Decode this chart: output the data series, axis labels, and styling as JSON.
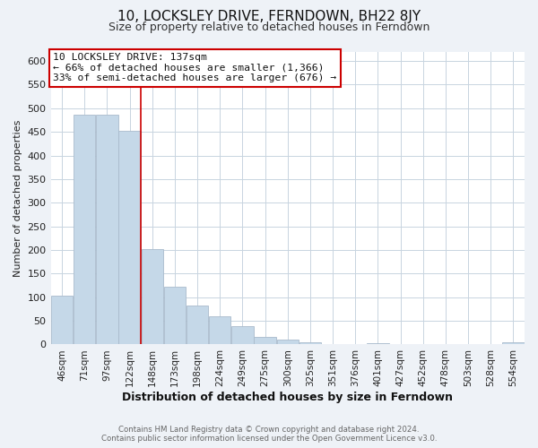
{
  "title": "10, LOCKSLEY DRIVE, FERNDOWN, BH22 8JY",
  "subtitle": "Size of property relative to detached houses in Ferndown",
  "xlabel": "Distribution of detached houses by size in Ferndown",
  "ylabel": "Number of detached properties",
  "bar_labels": [
    "46sqm",
    "71sqm",
    "97sqm",
    "122sqm",
    "148sqm",
    "173sqm",
    "198sqm",
    "224sqm",
    "249sqm",
    "275sqm",
    "300sqm",
    "325sqm",
    "351sqm",
    "376sqm",
    "401sqm",
    "427sqm",
    "452sqm",
    "478sqm",
    "503sqm",
    "528sqm",
    "554sqm"
  ],
  "bar_values": [
    103,
    487,
    487,
    452,
    201,
    122,
    82,
    59,
    38,
    16,
    10,
    5,
    0,
    0,
    3,
    0,
    0,
    0,
    0,
    0,
    5
  ],
  "bar_color": "#c5d8e8",
  "bar_edge_color": "#aabbcc",
  "annotation_box_color": "#ffffff",
  "annotation_box_edge": "#cc0000",
  "annotation_line1": "10 LOCKSLEY DRIVE: 137sqm",
  "annotation_line2": "← 66% of detached houses are smaller (1,366)",
  "annotation_line3": "33% of semi-detached houses are larger (676) →",
  "vline_color": "#cc0000",
  "vline_x": 3.5,
  "ylim": [
    0,
    620
  ],
  "yticks": [
    0,
    50,
    100,
    150,
    200,
    250,
    300,
    350,
    400,
    450,
    500,
    550,
    600
  ],
  "footer1": "Contains HM Land Registry data © Crown copyright and database right 2024.",
  "footer2": "Contains public sector information licensed under the Open Government Licence v3.0.",
  "bg_color": "#eef2f7",
  "plot_bg_color": "#ffffff",
  "grid_color": "#c8d4e0",
  "title_fontsize": 11,
  "subtitle_fontsize": 9,
  "xlabel_fontsize": 9,
  "ylabel_fontsize": 8,
  "tick_fontsize": 8,
  "xtick_fontsize": 7.5
}
